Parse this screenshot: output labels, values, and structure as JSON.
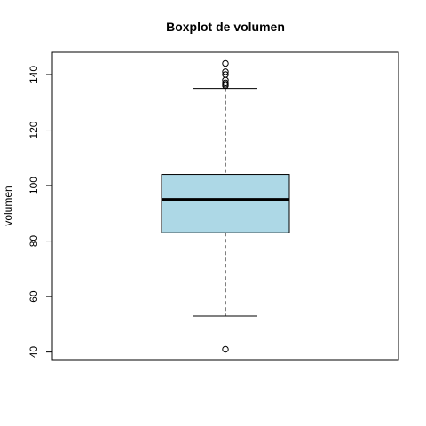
{
  "chart_data": {
    "type": "boxplot",
    "title": "Boxplot de volumen",
    "xlabel": "",
    "ylabel": "volumen",
    "ylim": [
      37,
      148
    ],
    "yticks": [
      40,
      60,
      80,
      100,
      120,
      140
    ],
    "box": {
      "whisker_low": 53,
      "q1": 83,
      "median": 95,
      "q3": 104,
      "whisker_high": 135
    },
    "outliers": [
      41,
      136,
      136.5,
      137,
      138,
      140,
      141,
      144
    ],
    "box_fill": "#add8e6",
    "grid": false
  }
}
